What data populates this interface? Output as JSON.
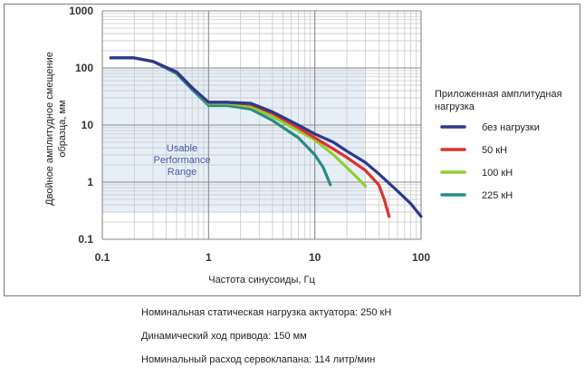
{
  "chart_data": {
    "type": "line",
    "x_scale": "log",
    "y_scale": "log",
    "xlim": [
      0.1,
      100
    ],
    "ylim": [
      0.1,
      1000
    ],
    "x_ticks": [
      "0.1",
      "1",
      "10",
      "100"
    ],
    "y_ticks": [
      "0.1",
      "1",
      "10",
      "100",
      "1000"
    ],
    "xlabel": "Частота синусоиды, Гц",
    "ylabel_lines": [
      "Двойное амплитудное смещение",
      "образца, мм"
    ],
    "grid": true,
    "legend_position": "right",
    "legend_title": "Приложенная амплитудная нагрузка",
    "annotation": {
      "lines": [
        "Usable",
        "Performance",
        "Range"
      ],
      "color": "#4a5aa0",
      "x_range": [
        0.1,
        30
      ],
      "y_range": [
        0.3,
        100
      ]
    },
    "series": [
      {
        "name": "без нагрузки",
        "color": "#2b3990",
        "points": [
          [
            0.12,
            150
          ],
          [
            0.2,
            150
          ],
          [
            0.3,
            130
          ],
          [
            0.5,
            85
          ],
          [
            0.7,
            45
          ],
          [
            1.0,
            25
          ],
          [
            1.5,
            25
          ],
          [
            2.5,
            24
          ],
          [
            4,
            17
          ],
          [
            7,
            10
          ],
          [
            10,
            7
          ],
          [
            15,
            5
          ],
          [
            20,
            3.5
          ],
          [
            30,
            2.2
          ],
          [
            40,
            1.4
          ],
          [
            60,
            0.7
          ],
          [
            80,
            0.42
          ],
          [
            100,
            0.25
          ]
        ]
      },
      {
        "name": "50 кН",
        "color": "#e0302a",
        "points": [
          [
            0.12,
            150
          ],
          [
            0.2,
            150
          ],
          [
            0.3,
            130
          ],
          [
            0.5,
            85
          ],
          [
            0.7,
            45
          ],
          [
            1.0,
            25
          ],
          [
            1.5,
            25
          ],
          [
            2.5,
            23
          ],
          [
            4,
            16
          ],
          [
            7,
            9
          ],
          [
            10,
            6
          ],
          [
            15,
            3.8
          ],
          [
            20,
            2.7
          ],
          [
            30,
            1.6
          ],
          [
            40,
            0.9
          ],
          [
            45,
            0.5
          ],
          [
            50,
            0.25
          ]
        ]
      },
      {
        "name": "100 кН",
        "color": "#8fcf2f",
        "points": [
          [
            0.12,
            150
          ],
          [
            0.2,
            150
          ],
          [
            0.3,
            130
          ],
          [
            0.5,
            85
          ],
          [
            0.7,
            45
          ],
          [
            1.0,
            24
          ],
          [
            1.5,
            24
          ],
          [
            2.5,
            21
          ],
          [
            4,
            14
          ],
          [
            7,
            8
          ],
          [
            10,
            5.5
          ],
          [
            15,
            3
          ],
          [
            20,
            1.8
          ],
          [
            25,
            1.2
          ],
          [
            30,
            0.85
          ]
        ]
      },
      {
        "name": "225 кН",
        "color": "#2a8a84",
        "points": [
          [
            0.12,
            150
          ],
          [
            0.2,
            150
          ],
          [
            0.3,
            130
          ],
          [
            0.5,
            80
          ],
          [
            0.7,
            42
          ],
          [
            1.0,
            22
          ],
          [
            1.5,
            22
          ],
          [
            2.5,
            19
          ],
          [
            4,
            12
          ],
          [
            7,
            6
          ],
          [
            10,
            3
          ],
          [
            12,
            1.8
          ],
          [
            14,
            0.9
          ]
        ]
      }
    ]
  },
  "specs": {
    "line1": "Номинальная статическая нагрузка актуатора:  250 кН",
    "line2": "Динамический ход привода: 150 мм",
    "line3": "Номинальный расход сервоклапана: 114 литр/мин"
  }
}
